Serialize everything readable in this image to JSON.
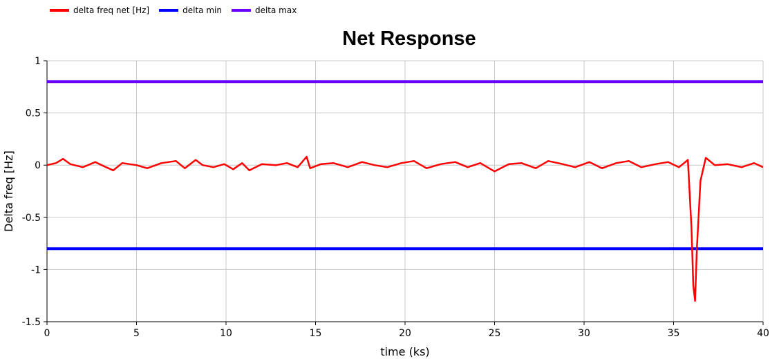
{
  "legend": {
    "items": [
      {
        "label": "delta freq net [Hz]",
        "color": "#ff0000"
      },
      {
        "label": "delta min",
        "color": "#0000ff"
      },
      {
        "label": "delta max",
        "color": "#6a00ff"
      }
    ]
  },
  "chart_data": {
    "type": "line",
    "title": "Net Response",
    "xlabel": "time (ks)",
    "ylabel": "Delta freq [Hz]",
    "xlim": [
      0,
      40
    ],
    "ylim": [
      -1.5,
      1
    ],
    "xticks": [
      "0",
      "5",
      "10",
      "15",
      "20",
      "25",
      "30",
      "35",
      "40"
    ],
    "yticks": [
      "1",
      "0.5",
      "0",
      "-0.5",
      "-1",
      "-1.5"
    ],
    "grid": true,
    "legend_position": "top-left",
    "series": [
      {
        "name": "delta freq net [Hz]",
        "color": "#ff0000",
        "x": [
          0,
          0.5,
          0.9,
          1.3,
          2,
          2.7,
          3.3,
          3.7,
          4.2,
          5,
          5.6,
          6.4,
          7.2,
          7.7,
          8.3,
          8.7,
          9.3,
          9.9,
          10.4,
          10.9,
          11.3,
          12,
          12.8,
          13.4,
          14,
          14.5,
          14.7,
          15.3,
          16,
          16.8,
          17.6,
          18.3,
          19,
          19.8,
          20.5,
          21.2,
          22,
          22.8,
          23.5,
          24.2,
          25,
          25.8,
          26.5,
          27.3,
          28,
          28.8,
          29.5,
          30.3,
          31,
          31.8,
          32.5,
          33.2,
          34,
          34.7,
          35.3,
          35.8,
          36,
          36.1,
          36.2,
          36.3,
          36.5,
          36.8,
          37.3,
          38,
          38.8,
          39.5,
          40
        ],
        "y": [
          0,
          0.02,
          0.06,
          0.01,
          -0.02,
          0.03,
          -0.02,
          -0.05,
          0.02,
          0,
          -0.03,
          0.02,
          0.04,
          -0.03,
          0.05,
          0,
          -0.02,
          0.01,
          -0.04,
          0.02,
          -0.05,
          0.01,
          0,
          0.02,
          -0.02,
          0.08,
          -0.03,
          0.01,
          0.02,
          -0.02,
          0.03,
          0,
          -0.02,
          0.02,
          0.04,
          -0.03,
          0.01,
          0.03,
          -0.02,
          0.02,
          -0.06,
          0.01,
          0.02,
          -0.03,
          0.04,
          0.01,
          -0.02,
          0.03,
          -0.03,
          0.02,
          0.04,
          -0.02,
          0.01,
          0.03,
          -0.02,
          0.05,
          -0.6,
          -1.15,
          -1.3,
          -0.8,
          -0.15,
          0.07,
          0,
          0.01,
          -0.02,
          0.02,
          -0.02
        ]
      },
      {
        "name": "delta min",
        "color": "#0000ff",
        "x": [
          0,
          40
        ],
        "y": [
          -0.8,
          -0.8
        ]
      },
      {
        "name": "delta max",
        "color": "#6a00ff",
        "x": [
          0,
          40
        ],
        "y": [
          0.8,
          0.8
        ]
      }
    ]
  }
}
